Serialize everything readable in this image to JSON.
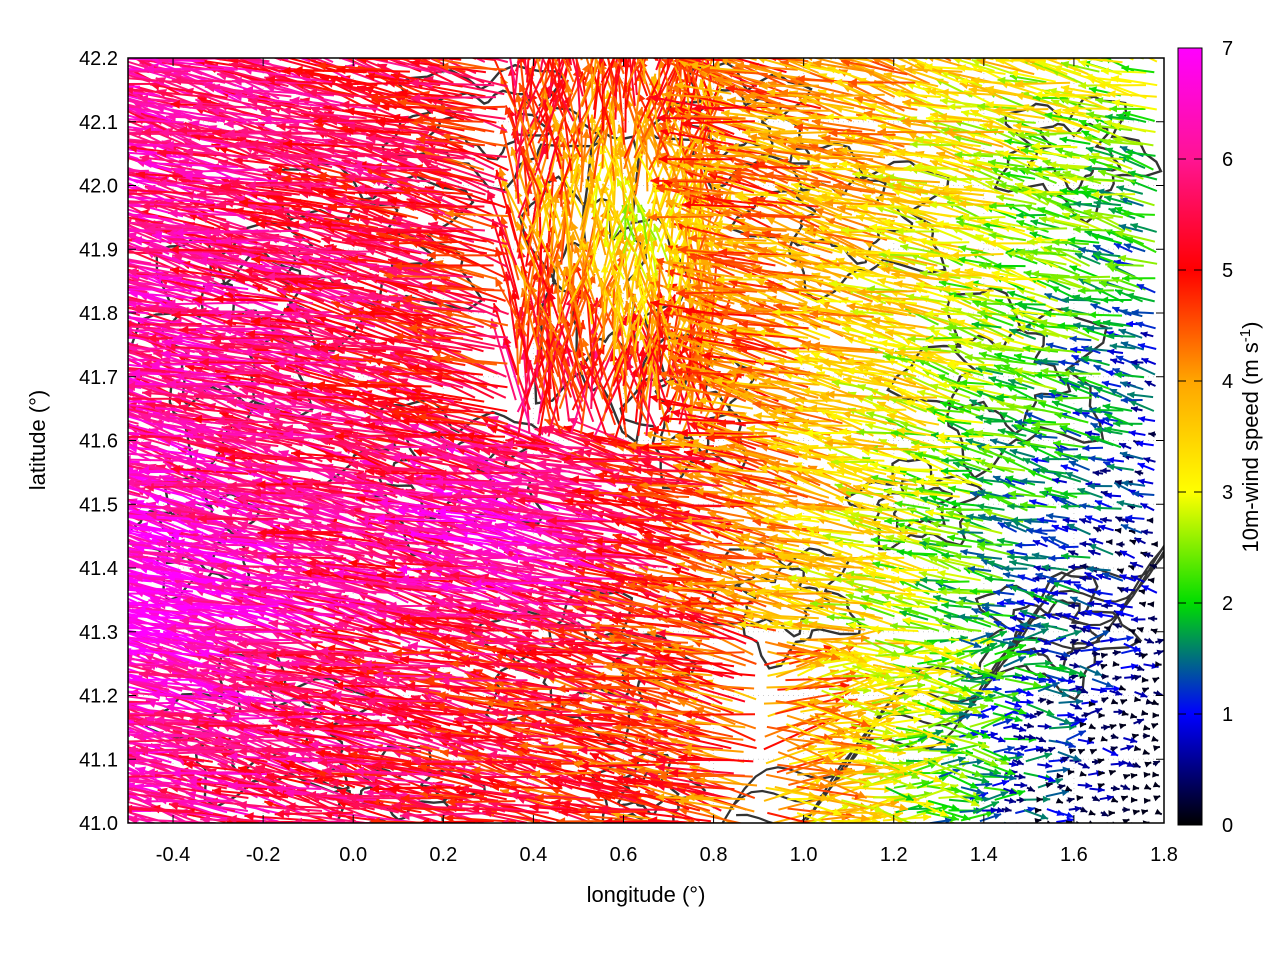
{
  "chart_data": {
    "type": "vector-field",
    "xlabel": "longitude (°)",
    "ylabel": "latitude (°)",
    "xlim": [
      -0.5,
      1.8
    ],
    "ylim": [
      41.0,
      42.2
    ],
    "x_ticks": [
      "-0.4",
      "-0.2",
      "0.0",
      "0.2",
      "0.4",
      "0.6",
      "0.8",
      "1.0",
      "1.2",
      "1.4",
      "1.6",
      "1.8"
    ],
    "y_ticks": [
      "41.0",
      "41.1",
      "41.2",
      "41.3",
      "41.4",
      "41.5",
      "41.6",
      "41.7",
      "41.8",
      "41.9",
      "42.0",
      "42.1",
      "42.2"
    ],
    "grid": true,
    "colorbar": {
      "title_main": "10m-wind speed (m s",
      "title_exp": "-1",
      "title_close": ")",
      "range": [
        0,
        7
      ],
      "ticks": [
        "0",
        "1",
        "2",
        "3",
        "4",
        "5",
        "6",
        "7"
      ],
      "palette": [
        "#000000",
        "#0000ff",
        "#00dd00",
        "#ffff00",
        "#ffa500",
        "#ff0000",
        "#ff00ff"
      ]
    },
    "description_fields": {
      "vectors": "wind arrows colored by speed",
      "contours": "terrain elevation contour lines"
    }
  }
}
